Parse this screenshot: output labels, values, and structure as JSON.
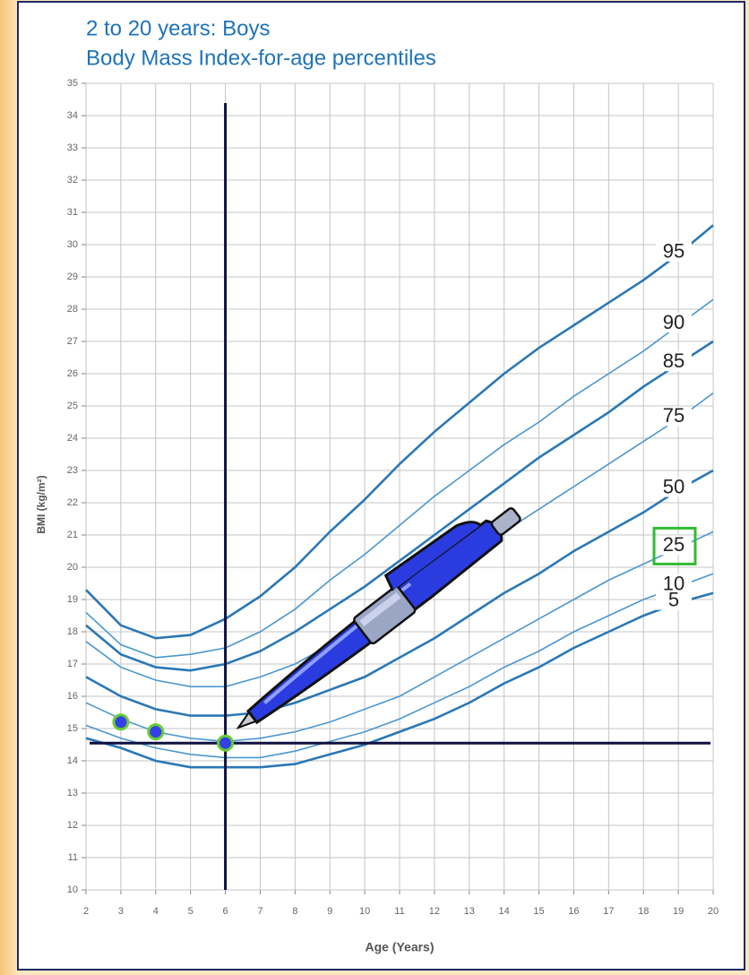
{
  "chart_data": {
    "type": "line",
    "title": "2 to 20 years: Boys",
    "subtitle": "Body Mass Index-for-age percentiles",
    "x_label": "Age (Years)",
    "y_label": "BMI (kg/m²)",
    "x": [
      2,
      3,
      4,
      5,
      6,
      7,
      8,
      9,
      10,
      11,
      12,
      13,
      14,
      15,
      16,
      17,
      18,
      19,
      20
    ],
    "xlim": [
      2,
      20
    ],
    "ylim": [
      10,
      35
    ],
    "xticks": [
      2,
      3,
      4,
      5,
      6,
      7,
      8,
      9,
      10,
      11,
      12,
      13,
      14,
      15,
      16,
      17,
      18,
      19,
      20
    ],
    "yticks": [
      10,
      11,
      12,
      13,
      14,
      15,
      16,
      17,
      18,
      19,
      20,
      21,
      22,
      23,
      24,
      25,
      26,
      27,
      28,
      29,
      30,
      31,
      32,
      33,
      34,
      35
    ],
    "grid": true,
    "series": [
      {
        "name": "95",
        "color": "#2a78b6",
        "values": [
          19.3,
          18.2,
          17.8,
          17.9,
          18.4,
          19.1,
          20.0,
          21.1,
          22.1,
          23.2,
          24.2,
          25.1,
          26.0,
          26.8,
          27.5,
          28.2,
          28.9,
          29.7,
          30.6
        ]
      },
      {
        "name": "90",
        "color": "#4b97cf",
        "values": [
          18.6,
          17.6,
          17.2,
          17.3,
          17.5,
          18.0,
          18.7,
          19.6,
          20.4,
          21.3,
          22.2,
          23.0,
          23.8,
          24.5,
          25.3,
          26.0,
          26.7,
          27.5,
          28.3
        ]
      },
      {
        "name": "85",
        "color": "#2a78b6",
        "values": [
          18.2,
          17.3,
          16.9,
          16.8,
          17.0,
          17.4,
          18.0,
          18.7,
          19.4,
          20.2,
          21.0,
          21.8,
          22.6,
          23.4,
          24.1,
          24.8,
          25.6,
          26.3,
          27.0
        ]
      },
      {
        "name": "75",
        "color": "#4b97cf",
        "values": [
          17.7,
          16.9,
          16.5,
          16.3,
          16.3,
          16.6,
          17.0,
          17.6,
          18.3,
          18.9,
          19.6,
          20.4,
          21.1,
          21.8,
          22.5,
          23.2,
          23.9,
          24.6,
          25.4
        ]
      },
      {
        "name": "50",
        "color": "#2a78b6",
        "values": [
          16.6,
          16.0,
          15.6,
          15.4,
          15.4,
          15.5,
          15.8,
          16.2,
          16.6,
          17.2,
          17.8,
          18.5,
          19.2,
          19.8,
          20.5,
          21.1,
          21.7,
          22.4,
          23.0
        ]
      },
      {
        "name": "25",
        "color": "#4b97cf",
        "values": [
          15.8,
          15.3,
          14.9,
          14.7,
          14.6,
          14.7,
          14.9,
          15.2,
          15.6,
          16.0,
          16.6,
          17.2,
          17.8,
          18.4,
          19.0,
          19.6,
          20.1,
          20.6,
          21.1
        ]
      },
      {
        "name": "10",
        "color": "#4b97cf",
        "values": [
          15.1,
          14.7,
          14.4,
          14.2,
          14.1,
          14.1,
          14.3,
          14.6,
          14.9,
          15.3,
          15.8,
          16.3,
          16.9,
          17.4,
          18.0,
          18.5,
          19.0,
          19.4,
          19.8
        ]
      },
      {
        "name": "5",
        "color": "#2a78b6",
        "values": [
          14.7,
          14.4,
          14.0,
          13.8,
          13.8,
          13.8,
          13.9,
          14.2,
          14.5,
          14.9,
          15.3,
          15.8,
          16.4,
          16.9,
          17.5,
          18.0,
          18.5,
          18.9,
          19.2
        ]
      }
    ],
    "points": {
      "x": [
        3,
        4,
        6
      ],
      "values": [
        15.2,
        14.9,
        14.55
      ],
      "color": "#3340e8"
    }
  }
}
